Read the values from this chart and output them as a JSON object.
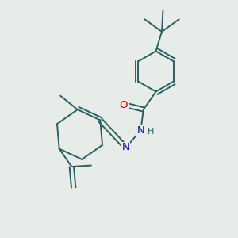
{
  "background_color": "#e8ece8",
  "bond_color": "#2a6060",
  "atom_colors": {
    "O": "#cc0000",
    "N": "#0000bb",
    "H": "#2a6060"
  },
  "lw": 1.4,
  "fs": 8.5
}
